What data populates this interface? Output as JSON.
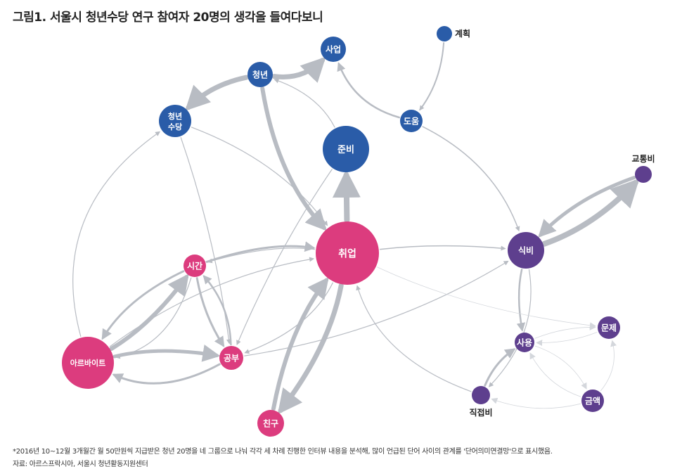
{
  "title": "그림1. 서울시 청년수당 연구 참여자 20명의 생각을 들여다보니",
  "footnote": "*2016년 10~12월 3개월간 월 50만원씩 지급받은 청년 20명을 네 그룹으로 나눠 각각 세 차례 진행한 인터뷰 내용을 분석해, 많이 언급된 단어 사이의 관계를 '단어의미연결망'으로 표시했음.",
  "source": "자료: 아르스프락시아, 서울시 청년활동지원센터",
  "colors": {
    "blue": "#2a5ca8",
    "pink": "#dc3c7e",
    "purple": "#5e3f8e",
    "edge": "#b8bcc3"
  },
  "nodes": [
    {
      "id": "saup",
      "label": "사업",
      "group": "blue"
    },
    {
      "id": "gyehoek",
      "label": "계획",
      "group": "blue",
      "label_side": "right"
    },
    {
      "id": "cheongnyeon",
      "label": "청년",
      "group": "blue"
    },
    {
      "id": "sudang",
      "label": "청년 수당",
      "lines": [
        "청년",
        "수당"
      ],
      "group": "blue"
    },
    {
      "id": "doum",
      "label": "도움",
      "group": "blue"
    },
    {
      "id": "junbi",
      "label": "준비",
      "group": "blue"
    },
    {
      "id": "gyotongbi",
      "label": "교통비",
      "group": "purple",
      "label_side": "top"
    },
    {
      "id": "chwieop",
      "label": "취업",
      "group": "pink"
    },
    {
      "id": "sikbi",
      "label": "식비",
      "group": "purple"
    },
    {
      "id": "sigan",
      "label": "시간",
      "group": "pink"
    },
    {
      "id": "munje",
      "label": "문제",
      "group": "purple"
    },
    {
      "id": "sayong",
      "label": "사용",
      "group": "purple"
    },
    {
      "id": "areubaiteu",
      "label": "아르바이트",
      "group": "pink"
    },
    {
      "id": "gongbu",
      "label": "공부",
      "group": "pink"
    },
    {
      "id": "jikjeopbi",
      "label": "직접비",
      "group": "purple",
      "label_side": "bottom"
    },
    {
      "id": "geumaek",
      "label": "금액",
      "group": "purple"
    },
    {
      "id": "chingu",
      "label": "친구",
      "group": "pink"
    }
  ]
}
